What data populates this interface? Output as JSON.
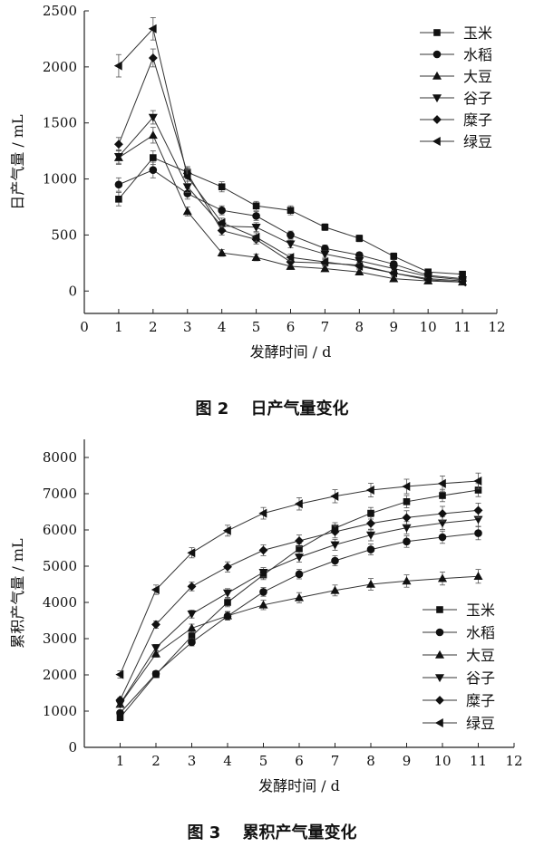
{
  "chart_data": [
    {
      "type": "line",
      "title": "",
      "caption_number": "图 2",
      "caption_text": "日产气量变化",
      "xlabel": "发酵时间 / d",
      "ylabel": "日产气量 / mL",
      "xlim": [
        0,
        12
      ],
      "ylim": [
        -200,
        2500
      ],
      "x_ticks": [
        "0",
        "1",
        "2",
        "3",
        "4",
        "5",
        "6",
        "7",
        "8",
        "9",
        "10",
        "11",
        "12"
      ],
      "y_ticks": [
        "0",
        "500",
        "1000",
        "1500",
        "2000",
        "2500"
      ],
      "legend_position": "top-right",
      "x": [
        1,
        2,
        3,
        4,
        5,
        6,
        7,
        8,
        9,
        10,
        11
      ],
      "series": [
        {
          "name": "玉米",
          "marker": "square",
          "values": [
            820,
            1190,
            1060,
            930,
            760,
            720,
            570,
            470,
            310,
            170,
            150
          ],
          "errors": [
            60,
            60,
            50,
            45,
            40,
            40,
            30,
            30,
            30,
            20,
            20
          ]
        },
        {
          "name": "水稻",
          "marker": "circle",
          "values": [
            950,
            1080,
            870,
            720,
            670,
            500,
            380,
            320,
            240,
            140,
            110
          ],
          "errors": [
            60,
            70,
            50,
            40,
            40,
            35,
            30,
            25,
            25,
            20,
            20
          ]
        },
        {
          "name": "大豆",
          "marker": "triangle-up",
          "values": [
            1190,
            1390,
            710,
            340,
            300,
            220,
            200,
            170,
            110,
            90,
            80
          ],
          "errors": [
            60,
            70,
            40,
            30,
            30,
            25,
            25,
            25,
            20,
            15,
            15
          ]
        },
        {
          "name": "谷子",
          "marker": "triangle-down",
          "values": [
            1200,
            1550,
            930,
            580,
            570,
            420,
            330,
            270,
            200,
            130,
            100
          ],
          "errors": [
            60,
            60,
            50,
            40,
            40,
            35,
            30,
            30,
            25,
            20,
            20
          ]
        },
        {
          "name": "糜子",
          "marker": "diamond",
          "values": [
            1310,
            2080,
            1050,
            540,
            460,
            260,
            250,
            230,
            160,
            110,
            90
          ],
          "errors": [
            60,
            80,
            50,
            40,
            40,
            30,
            30,
            25,
            20,
            15,
            15
          ]
        },
        {
          "name": "绿豆",
          "marker": "triangle-left",
          "values": [
            2010,
            2340,
            1020,
            610,
            480,
            300,
            260,
            220,
            160,
            100,
            80
          ],
          "errors": [
            100,
            100,
            60,
            40,
            40,
            30,
            30,
            25,
            20,
            15,
            15
          ]
        }
      ]
    },
    {
      "type": "line",
      "title": "",
      "caption_number": "图 3",
      "caption_text": "累积产气量变化",
      "xlabel": "发酵时间 / d",
      "ylabel": "累积产气量 / mL",
      "xlim": [
        0,
        12
      ],
      "ylim": [
        0,
        8500
      ],
      "x_ticks": [
        "1",
        "2",
        "3",
        "4",
        "5",
        "6",
        "7",
        "8",
        "9",
        "10",
        "11",
        "12"
      ],
      "y_ticks": [
        "0",
        "1000",
        "2000",
        "3000",
        "4000",
        "5000",
        "6000",
        "7000",
        "8000"
      ],
      "legend_position": "bottom-right",
      "x": [
        1,
        2,
        3,
        4,
        5,
        6,
        7,
        8,
        9,
        10,
        11
      ],
      "series": [
        {
          "name": "玉米",
          "marker": "square",
          "values": [
            820,
            2010,
            3070,
            4000,
            4760,
            5480,
            6050,
            6460,
            6780,
            6950,
            7100
          ],
          "errors": [
            60,
            80,
            100,
            120,
            130,
            140,
            150,
            160,
            170,
            170,
            180
          ]
        },
        {
          "name": "水稻",
          "marker": "circle",
          "values": [
            950,
            2030,
            2900,
            3620,
            4290,
            4780,
            5150,
            5460,
            5680,
            5800,
            5910
          ],
          "errors": [
            60,
            80,
            100,
            110,
            120,
            130,
            140,
            150,
            160,
            170,
            180
          ]
        },
        {
          "name": "大豆",
          "marker": "triangle-up",
          "values": [
            1190,
            2580,
            3290,
            3630,
            3930,
            4130,
            4330,
            4500,
            4590,
            4660,
            4720
          ],
          "errors": [
            60,
            90,
            110,
            120,
            130,
            140,
            150,
            160,
            170,
            180,
            190
          ]
        },
        {
          "name": "谷子",
          "marker": "triangle-down",
          "values": [
            1200,
            2750,
            3680,
            4260,
            4830,
            5250,
            5590,
            5860,
            6060,
            6190,
            6290
          ],
          "errors": [
            60,
            90,
            110,
            120,
            130,
            140,
            150,
            160,
            170,
            180,
            190
          ]
        },
        {
          "name": "糜子",
          "marker": "diamond",
          "values": [
            1310,
            3390,
            4440,
            4980,
            5440,
            5700,
            5950,
            6180,
            6340,
            6450,
            6540
          ],
          "errors": [
            60,
            100,
            120,
            140,
            150,
            160,
            170,
            180,
            190,
            200,
            200
          ]
        },
        {
          "name": "绿豆",
          "marker": "triangle-left",
          "values": [
            2010,
            4350,
            5370,
            5980,
            6460,
            6720,
            6930,
            7100,
            7200,
            7280,
            7350
          ],
          "errors": [
            100,
            130,
            140,
            150,
            160,
            170,
            180,
            190,
            200,
            210,
            220
          ]
        }
      ]
    }
  ]
}
